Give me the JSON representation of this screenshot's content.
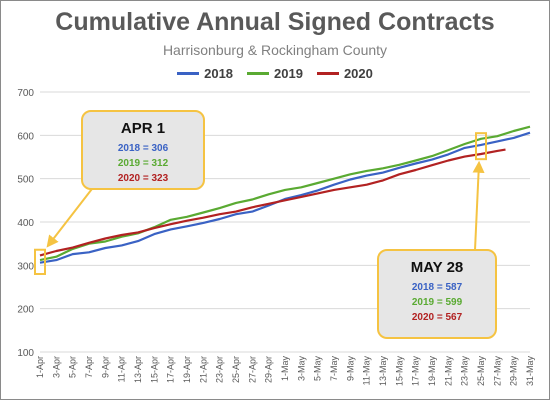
{
  "chart_data": {
    "type": "line",
    "title": "Cumulative Annual Signed Contracts",
    "subtitle": "Harrisonburg & Rockingham County",
    "xlabel": "",
    "ylabel": "",
    "ylim": [
      100,
      700
    ],
    "yticks": [
      100,
      200,
      300,
      400,
      500,
      600,
      700
    ],
    "grid": true,
    "legend": "top-center",
    "x_tick_labels": [
      "1-Apr",
      "3-Apr",
      "5-Apr",
      "7-Apr",
      "9-Apr",
      "11-Apr",
      "13-Apr",
      "15-Apr",
      "17-Apr",
      "19-Apr",
      "21-Apr",
      "23-Apr",
      "25-Apr",
      "27-Apr",
      "29-Apr",
      "1-May",
      "3-May",
      "5-May",
      "7-May",
      "9-May",
      "11-May",
      "13-May",
      "15-May",
      "17-May",
      "19-May",
      "21-May",
      "23-May",
      "25-May",
      "27-May",
      "29-May",
      "31-May"
    ],
    "series": [
      {
        "name": "2018",
        "color": "#3a62c4",
        "x": [
          0,
          2,
          4,
          6,
          8,
          10,
          12,
          14,
          16,
          18,
          20,
          22,
          24,
          26,
          28,
          30,
          32,
          34,
          36,
          38,
          40,
          42,
          44,
          46,
          48,
          50,
          52,
          54,
          56,
          58,
          60
        ],
        "values": [
          306,
          312,
          326,
          330,
          340,
          346,
          356,
          372,
          383,
          390,
          398,
          407,
          418,
          424,
          438,
          453,
          462,
          473,
          486,
          498,
          507,
          514,
          525,
          535,
          544,
          556,
          571,
          578,
          586,
          594,
          606
        ]
      },
      {
        "name": "2019",
        "color": "#5aaa32",
        "x": [
          0,
          2,
          4,
          6,
          8,
          10,
          12,
          14,
          16,
          18,
          20,
          22,
          24,
          26,
          28,
          30,
          32,
          34,
          36,
          38,
          40,
          42,
          44,
          46,
          48,
          50,
          52,
          54,
          56,
          58,
          60
        ],
        "values": [
          312,
          320,
          338,
          350,
          355,
          366,
          374,
          388,
          405,
          412,
          422,
          432,
          444,
          452,
          464,
          474,
          480,
          490,
          500,
          510,
          518,
          524,
          532,
          542,
          552,
          566,
          580,
          592,
          598,
          610,
          620
        ]
      },
      {
        "name": "2020",
        "color": "#b22222",
        "x": [
          0,
          2,
          4,
          6,
          8,
          10,
          12,
          14,
          16,
          18,
          20,
          22,
          24,
          26,
          28,
          30,
          32,
          34,
          36,
          38,
          40,
          42,
          44,
          46,
          48,
          50,
          52,
          54,
          56,
          57
        ],
        "values": [
          323,
          333,
          341,
          352,
          362,
          370,
          376,
          386,
          395,
          403,
          410,
          418,
          424,
          434,
          442,
          450,
          458,
          466,
          474,
          480,
          486,
          496,
          510,
          520,
          531,
          542,
          551,
          557,
          564,
          567
        ]
      }
    ]
  },
  "callouts": {
    "apr": {
      "head": "APR 1",
      "l2018": "2018 = 306",
      "l2019": "2019 = 312",
      "l2020": "2020 = 323"
    },
    "may": {
      "head": "MAY 28",
      "l2018": "2018 = 587",
      "l2019": "2019 = 599",
      "l2020": "2020 = 567"
    }
  },
  "colors": {
    "highlight": "#f5c342",
    "gridline": "#d9d9d9",
    "axis_text": "#595959"
  }
}
